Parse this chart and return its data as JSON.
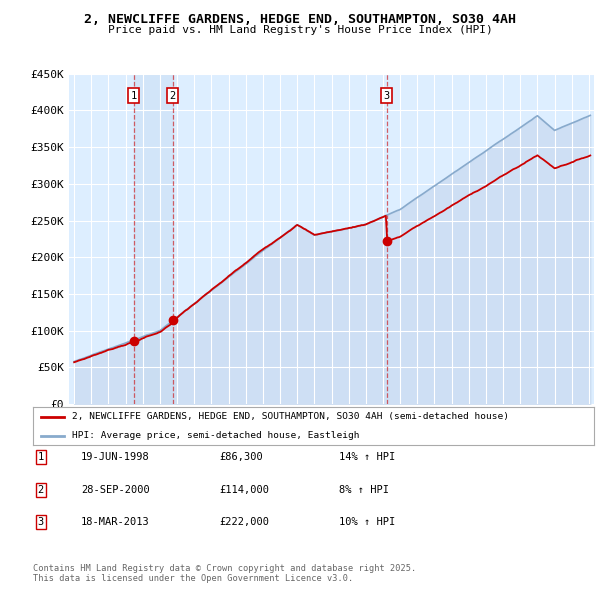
{
  "title_line1": "2, NEWCLIFFE GARDENS, HEDGE END, SOUTHAMPTON, SO30 4AH",
  "title_line2": "Price paid vs. HM Land Registry's House Price Index (HPI)",
  "legend_line1": "2, NEWCLIFFE GARDENS, HEDGE END, SOUTHAMPTON, SO30 4AH (semi-detached house)",
  "legend_line2": "HPI: Average price, semi-detached house, Eastleigh",
  "transactions": [
    {
      "num": 1,
      "date": "19-JUN-1998",
      "price": "£86,300",
      "hpi": "14% ↑ HPI",
      "year": 1998.46
    },
    {
      "num": 2,
      "date": "28-SEP-2000",
      "price": "£114,000",
      "hpi": "8% ↑ HPI",
      "year": 2000.74
    },
    {
      "num": 3,
      "date": "18-MAR-2013",
      "price": "£222,000",
      "hpi": "10% ↑ HPI",
      "year": 2013.21
    }
  ],
  "transaction_prices": [
    86300,
    114000,
    222000
  ],
  "footnote": "Contains HM Land Registry data © Crown copyright and database right 2025.\nThis data is licensed under the Open Government Licence v3.0.",
  "plot_bg_color": "#ddeeff",
  "line_color_red": "#cc0000",
  "line_color_blue": "#88aacc",
  "fill_color_blue": "#c8daf0",
  "ylim": [
    0,
    450000
  ],
  "yticks": [
    0,
    50000,
    100000,
    150000,
    200000,
    250000,
    300000,
    350000,
    400000,
    450000
  ],
  "xlim_start": 1994.7,
  "xlim_end": 2025.3
}
